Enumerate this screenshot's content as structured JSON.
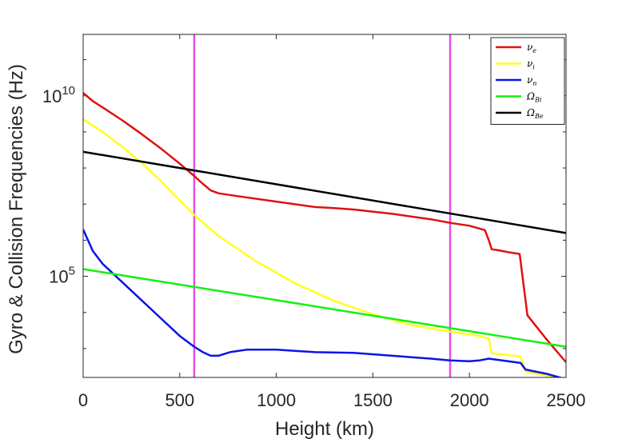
{
  "chart_data": {
    "type": "line",
    "xlabel": "Height (km)",
    "ylabel": "Gyro & Collision Frequencies (Hz)",
    "xlim": [
      0,
      2500
    ],
    "ylim_log10": [
      2.2,
      11.7
    ],
    "yscale": "log",
    "x_ticks": [
      0,
      500,
      1000,
      1500,
      2000,
      2500
    ],
    "x_tick_labels": [
      "0",
      "500",
      "1000",
      "1500",
      "2000",
      "2500"
    ],
    "y_ticks_log10": [
      5,
      10
    ],
    "y_tick_labels": [
      {
        "base": "10",
        "exp": "5"
      },
      {
        "base": "10",
        "exp": "10"
      }
    ],
    "legend_position": "top-right",
    "vertical_lines": [
      {
        "x": 575,
        "color": "#e550e5"
      },
      {
        "x": 1900,
        "color": "#e550e5"
      }
    ],
    "series": [
      {
        "name": "ν_e",
        "label_main": "ν",
        "label_sub": "e",
        "color": "#e01010",
        "x": [
          0,
          50,
          100,
          200,
          300,
          400,
          500,
          575,
          620,
          660,
          700,
          800,
          1000,
          1200,
          1300,
          1400,
          1600,
          1800,
          1900,
          2000,
          2080,
          2100,
          2115,
          2150,
          2200,
          2260,
          2300,
          2400,
          2500
        ],
        "log10_y": [
          10.08,
          9.85,
          9.68,
          9.33,
          8.95,
          8.55,
          8.12,
          7.78,
          7.56,
          7.38,
          7.3,
          7.22,
          7.07,
          6.92,
          6.89,
          6.85,
          6.73,
          6.58,
          6.48,
          6.4,
          6.28,
          6.0,
          5.75,
          5.72,
          5.67,
          5.62,
          3.92,
          3.25,
          2.62
        ]
      },
      {
        "name": "ν_i",
        "label_main": "ν",
        "label_sub": "i",
        "color": "#ffff1e",
        "x": [
          0,
          100,
          200,
          300,
          400,
          500,
          575,
          700,
          900,
          1100,
          1300,
          1500,
          1700,
          1900,
          2050,
          2100,
          2115,
          2200,
          2265,
          2290,
          2400,
          2500
        ],
        "log10_y": [
          9.35,
          9.0,
          8.6,
          8.15,
          7.65,
          7.1,
          6.7,
          6.12,
          5.4,
          4.8,
          4.32,
          3.95,
          3.65,
          3.47,
          3.35,
          3.28,
          2.87,
          2.82,
          2.78,
          2.36,
          2.25,
          2.12
        ]
      },
      {
        "name": "ν_n",
        "label_main": "ν",
        "label_sub": "n",
        "color": "#0a14e6",
        "x": [
          0,
          50,
          100,
          200,
          300,
          400,
          500,
          575,
          620,
          660,
          700,
          760,
          850,
          1000,
          1200,
          1400,
          1600,
          1800,
          1900,
          2000,
          2050,
          2100,
          2200,
          2265,
          2290,
          2400,
          2500
        ],
        "log10_y": [
          6.3,
          5.7,
          5.35,
          4.85,
          4.35,
          3.85,
          3.35,
          3.05,
          2.9,
          2.8,
          2.8,
          2.9,
          2.97,
          2.97,
          2.9,
          2.88,
          2.8,
          2.72,
          2.67,
          2.65,
          2.67,
          2.72,
          2.65,
          2.6,
          2.42,
          2.3,
          2.15
        ]
      },
      {
        "name": "Ω_Bi",
        "label_main": "Ω",
        "label_sub": "Bi",
        "color": "#14f014",
        "x": [
          0,
          2500
        ],
        "log10_y": [
          5.2,
          3.05
        ]
      },
      {
        "name": "Ω_Be",
        "label_main": "Ω",
        "label_sub": "Be",
        "color": "#000000",
        "x": [
          0,
          2500
        ],
        "log10_y": [
          8.45,
          6.2
        ]
      }
    ]
  }
}
